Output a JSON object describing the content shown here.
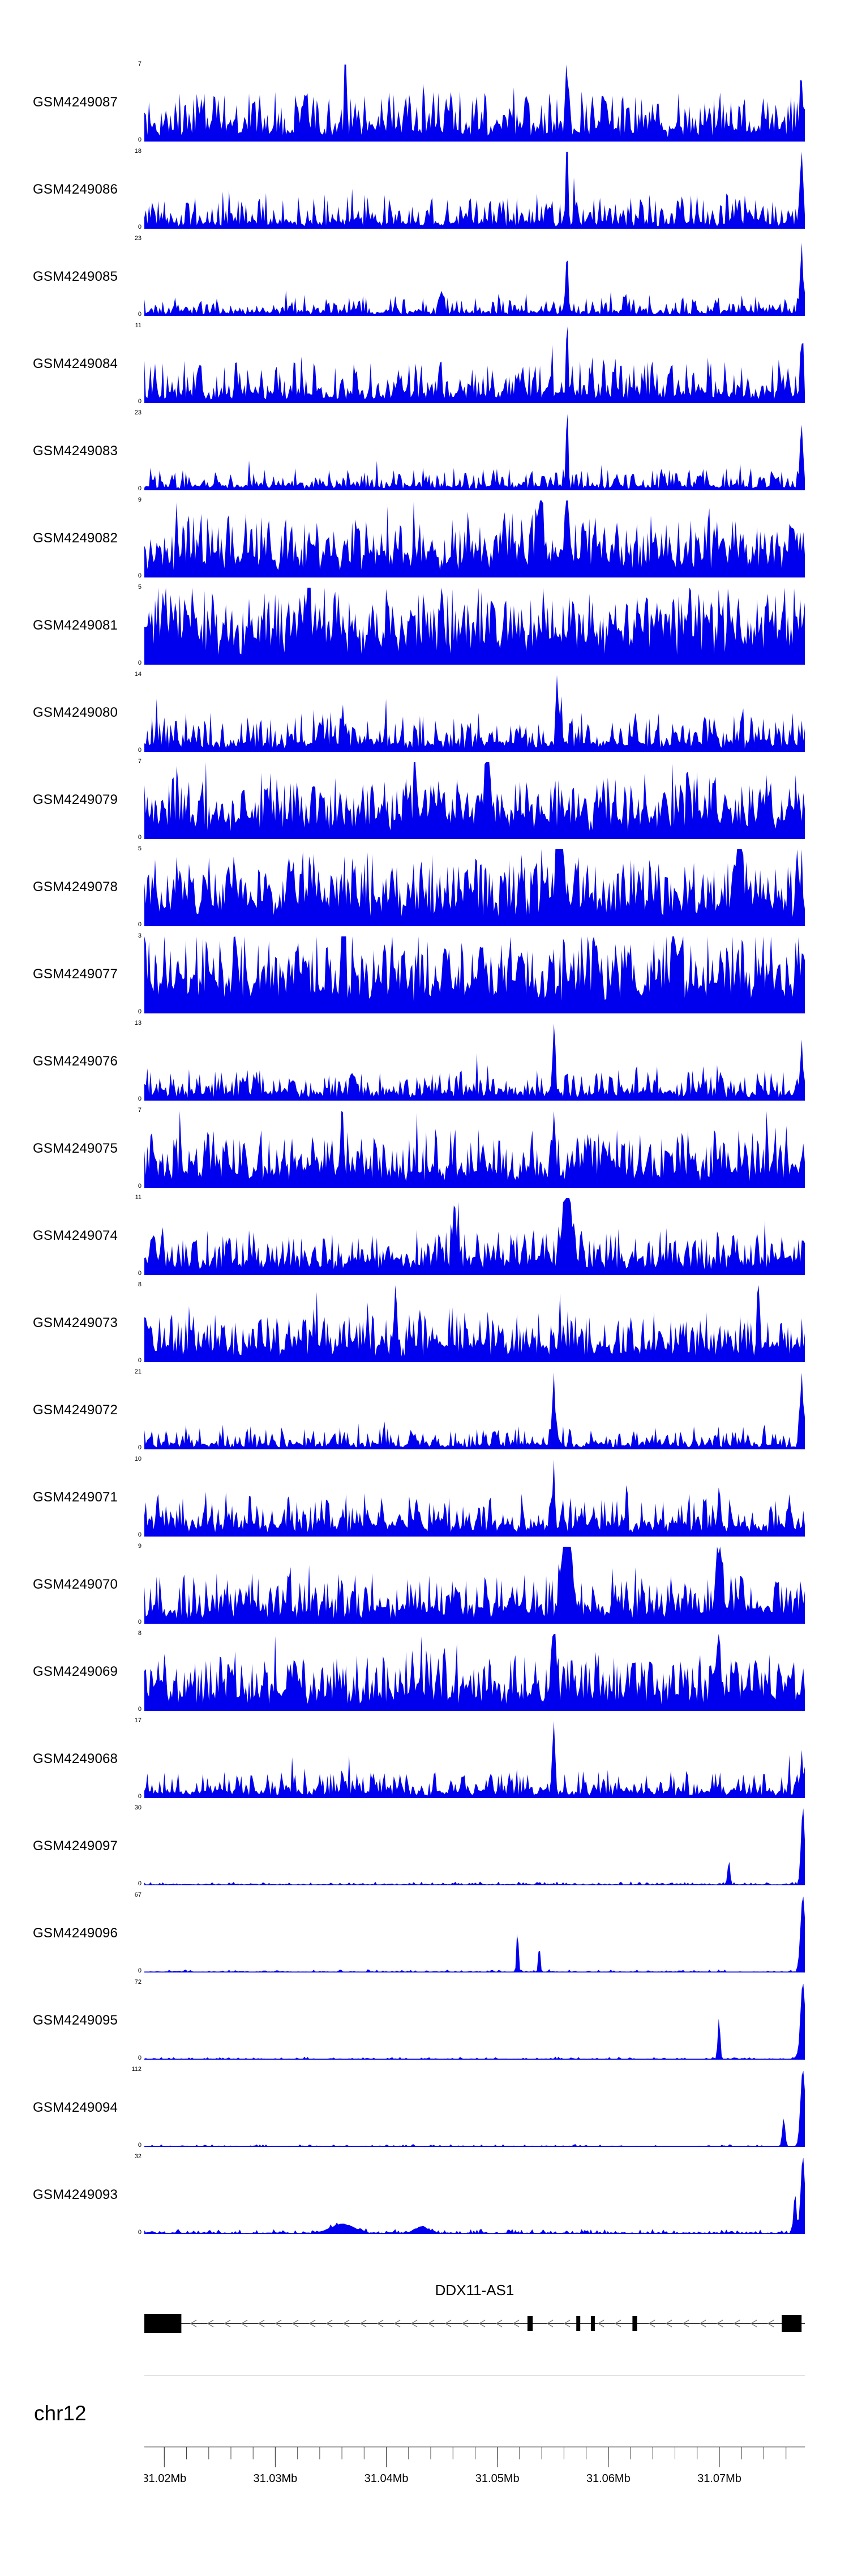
{
  "colors": {
    "signal": "#0000ee",
    "gene": "#000000",
    "arrow": "#7a7a7a",
    "axis_line": "#444444",
    "separator": "#aaaaaa"
  },
  "region": {
    "chrom_label": "chr12",
    "start_mb": 31.0182,
    "end_mb": 31.0777,
    "minor_tick_step_mb": 0.002,
    "ticks": [
      {
        "label": "31.02Mb",
        "mb": 31.02
      },
      {
        "label": "31.03Mb",
        "mb": 31.03
      },
      {
        "label": "31.04Mb",
        "mb": 31.04
      },
      {
        "label": "31.05Mb",
        "mb": 31.05
      },
      {
        "label": "31.06Mb",
        "mb": 31.06
      },
      {
        "label": "31.07Mb",
        "mb": 31.07
      }
    ]
  },
  "gene": {
    "name": "DDX11-AS1",
    "strand": "minus",
    "exons": [
      {
        "f": 0.0,
        "w": 0.056,
        "h": 34
      },
      {
        "f": 0.58,
        "w": 0.008,
        "h": 26
      },
      {
        "f": 0.654,
        "w": 0.006,
        "h": 26
      },
      {
        "f": 0.676,
        "w": 0.006,
        "h": 26
      },
      {
        "f": 0.739,
        "w": 0.007,
        "h": 26
      },
      {
        "f": 0.965,
        "w": 0.03,
        "h": 30
      }
    ]
  },
  "chart_data": {
    "type": "area",
    "x_axis": {
      "label": "chr12",
      "unit": "Mb",
      "range": [
        31.0182,
        31.0777
      ],
      "tick_labels": [
        "31.02Mb",
        "31.03Mb",
        "31.04Mb",
        "31.05Mb",
        "31.06Mb",
        "31.07Mb"
      ]
    },
    "ymin_label": "0",
    "tracks": [
      {
        "label": "GSM4249087",
        "ymax": "7",
        "seed": 101,
        "base": 0.16,
        "noise": 0.55,
        "pow": 2.2,
        "tall_prob": 0.05,
        "tall": 0.5,
        "floor": 0.006,
        "spikes": [
          {
            "p": 0.305,
            "h": 0.9,
            "w": 0.0025
          },
          {
            "p": 0.64,
            "h": 0.75,
            "w": 0.0025
          },
          {
            "p": 0.995,
            "h": 0.5,
            "w": 0.003
          }
        ]
      },
      {
        "label": "GSM4249086",
        "ymax": "18",
        "seed": 102,
        "base": 0.09,
        "noise": 0.38,
        "pow": 2.8,
        "tall_prob": 0.03,
        "tall": 0.4,
        "floor": 0.006,
        "spikes": [
          {
            "p": 0.64,
            "h": 1,
            "w": 0.0022
          },
          {
            "p": 0.995,
            "h": 0.85,
            "w": 0.0035
          }
        ]
      },
      {
        "label": "GSM4249085",
        "ymax": "23",
        "seed": 103,
        "base": 0.055,
        "noise": 0.22,
        "pow": 3.2,
        "tall_prob": 0.02,
        "tall": 0.3,
        "floor": 0.006,
        "spikes": [
          {
            "p": 0.45,
            "h": 0.3,
            "w": 0.004
          },
          {
            "p": 0.64,
            "h": 0.8,
            "w": 0.0025
          },
          {
            "p": 0.995,
            "h": 0.75,
            "w": 0.0035
          }
        ]
      },
      {
        "label": "GSM4249084",
        "ymax": "11",
        "seed": 104,
        "base": 0.13,
        "noise": 0.45,
        "pow": 2.4,
        "tall_prob": 0.04,
        "tall": 0.4,
        "floor": 0.006,
        "spikes": [
          {
            "p": 0.64,
            "h": 1,
            "w": 0.0022
          },
          {
            "p": 0.995,
            "h": 0.7,
            "w": 0.003
          }
        ]
      },
      {
        "label": "GSM4249083",
        "ymax": "23",
        "seed": 105,
        "base": 0.06,
        "noise": 0.24,
        "pow": 3.0,
        "tall_prob": 0.02,
        "tall": 0.35,
        "floor": 0.006,
        "spikes": [
          {
            "p": 0.64,
            "h": 1,
            "w": 0.0022
          },
          {
            "p": 0.995,
            "h": 0.8,
            "w": 0.0035
          }
        ]
      },
      {
        "label": "GSM4249082",
        "ymax": "9",
        "seed": 106,
        "base": 0.26,
        "noise": 0.6,
        "pow": 1.8,
        "tall_prob": 0.08,
        "tall": 0.45,
        "floor": 0.006,
        "spikes": [
          {
            "p": 0.6,
            "h": 1,
            "w": 0.003
          },
          {
            "p": 0.64,
            "h": 0.9,
            "w": 0.003
          }
        ]
      },
      {
        "label": "GSM4249081",
        "ymax": "5",
        "seed": 107,
        "base": 0.34,
        "noise": 0.68,
        "pow": 1.6,
        "tall_prob": 0.1,
        "tall": 0.4,
        "floor": 0.006,
        "spikes": [
          {
            "p": 0.25,
            "h": 1,
            "w": 0.003
          },
          {
            "p": 0.45,
            "h": 0.95,
            "w": 0.003
          }
        ]
      },
      {
        "label": "GSM4249080",
        "ymax": "14",
        "seed": 108,
        "base": 0.12,
        "noise": 0.4,
        "pow": 2.6,
        "tall_prob": 0.03,
        "tall": 0.4,
        "floor": 0.006,
        "spikes": [
          {
            "p": 0.3,
            "h": 0.5,
            "w": 0.003
          },
          {
            "p": 0.625,
            "h": 1,
            "w": 0.0022
          }
        ]
      },
      {
        "label": "GSM4249079",
        "ymax": "7",
        "seed": 109,
        "base": 0.27,
        "noise": 0.6,
        "pow": 1.8,
        "tall_prob": 0.08,
        "tall": 0.45,
        "floor": 0.006,
        "spikes": [
          {
            "p": 0.41,
            "h": 0.95,
            "w": 0.003
          },
          {
            "p": 0.52,
            "h": 0.9,
            "w": 0.005
          }
        ]
      },
      {
        "label": "GSM4249078",
        "ymax": "5",
        "seed": 110,
        "base": 0.32,
        "noise": 0.65,
        "pow": 1.7,
        "tall_prob": 0.09,
        "tall": 0.4,
        "floor": 0.006,
        "spikes": [
          {
            "p": 0.63,
            "h": 1,
            "w": 0.007
          },
          {
            "p": 0.9,
            "h": 0.9,
            "w": 0.005
          }
        ]
      },
      {
        "label": "GSM4249077",
        "ymax": "3",
        "seed": 111,
        "base": 0.4,
        "noise": 0.7,
        "pow": 1.5,
        "tall_prob": 0.12,
        "tall": 0.4,
        "floor": 0.006,
        "spikes": [
          {
            "p": 0.3,
            "h": 1,
            "w": 0.003
          },
          {
            "p": 0.8,
            "h": 1,
            "w": 0.003
          }
        ]
      },
      {
        "label": "GSM4249076",
        "ymax": "13",
        "seed": 112,
        "base": 0.11,
        "noise": 0.36,
        "pow": 2.6,
        "tall_prob": 0.03,
        "tall": 0.35,
        "floor": 0.006,
        "spikes": [
          {
            "p": 0.62,
            "h": 1,
            "w": 0.0022
          },
          {
            "p": 0.995,
            "h": 0.6,
            "w": 0.003
          }
        ]
      },
      {
        "label": "GSM4249075",
        "ymax": "7",
        "seed": 113,
        "base": 0.23,
        "noise": 0.55,
        "pow": 2.0,
        "tall_prob": 0.06,
        "tall": 0.45,
        "floor": 0.006,
        "spikes": [
          {
            "p": 0.3,
            "h": 0.9,
            "w": 0.0025
          },
          {
            "p": 0.62,
            "h": 0.8,
            "w": 0.0025
          }
        ]
      },
      {
        "label": "GSM4249074",
        "ymax": "11",
        "seed": 114,
        "base": 0.18,
        "noise": 0.45,
        "pow": 2.2,
        "tall_prob": 0.05,
        "tall": 0.4,
        "floor": 0.006,
        "spikes": [
          {
            "p": 0.47,
            "h": 0.6,
            "w": 0.004
          },
          {
            "p": 0.64,
            "h": 1,
            "w": 0.009
          }
        ]
      },
      {
        "label": "GSM4249073",
        "ymax": "8",
        "seed": 115,
        "base": 0.2,
        "noise": 0.5,
        "pow": 2.1,
        "tall_prob": 0.06,
        "tall": 0.4,
        "floor": 0.006,
        "spikes": [
          {
            "p": 0.38,
            "h": 0.9,
            "w": 0.0025
          },
          {
            "p": 0.93,
            "h": 0.85,
            "w": 0.0025
          }
        ]
      },
      {
        "label": "GSM4249072",
        "ymax": "21",
        "seed": 116,
        "base": 0.07,
        "noise": 0.26,
        "pow": 3.0,
        "tall_prob": 0.02,
        "tall": 0.3,
        "floor": 0.006,
        "spikes": [
          {
            "p": 0.62,
            "h": 1,
            "w": 0.0025
          },
          {
            "p": 0.995,
            "h": 0.8,
            "w": 0.0035
          }
        ]
      },
      {
        "label": "GSM4249071",
        "ymax": "10",
        "seed": 117,
        "base": 0.15,
        "noise": 0.42,
        "pow": 2.4,
        "tall_prob": 0.04,
        "tall": 0.4,
        "floor": 0.006,
        "spikes": [
          {
            "p": 0.62,
            "h": 1,
            "w": 0.0022
          },
          {
            "p": 0.87,
            "h": 0.55,
            "w": 0.003
          }
        ]
      },
      {
        "label": "GSM4249070",
        "ymax": "9",
        "seed": 118,
        "base": 0.19,
        "noise": 0.48,
        "pow": 2.1,
        "tall_prob": 0.05,
        "tall": 0.4,
        "floor": 0.006,
        "spikes": [
          {
            "p": 0.64,
            "h": 1,
            "w": 0.01
          },
          {
            "p": 0.87,
            "h": 0.75,
            "w": 0.006
          }
        ]
      },
      {
        "label": "GSM4249069",
        "ymax": "8",
        "seed": 119,
        "base": 0.23,
        "noise": 0.55,
        "pow": 2.0,
        "tall_prob": 0.06,
        "tall": 0.45,
        "floor": 0.006,
        "spikes": [
          {
            "p": 0.62,
            "h": 1,
            "w": 0.0035
          },
          {
            "p": 0.87,
            "h": 0.9,
            "w": 0.0035
          }
        ]
      },
      {
        "label": "GSM4249068",
        "ymax": "17",
        "seed": 120,
        "base": 0.09,
        "noise": 0.3,
        "pow": 2.8,
        "tall_prob": 0.03,
        "tall": 0.35,
        "floor": 0.006,
        "spikes": [
          {
            "p": 0.62,
            "h": 1,
            "w": 0.0025
          },
          {
            "p": 0.995,
            "h": 0.4,
            "w": 0.003
          }
        ]
      },
      {
        "label": "GSM4249097",
        "ymax": "30",
        "seed": 121,
        "base": 0.015,
        "noise": 0.035,
        "pow": 4.0,
        "tall_prob": 0,
        "tall": 0,
        "floor": 0.012,
        "spikes": [
          {
            "p": 0.885,
            "h": 0.32,
            "w": 0.0025
          },
          {
            "p": 0.997,
            "h": 1,
            "w": 0.004
          }
        ]
      },
      {
        "label": "GSM4249096",
        "ymax": "67",
        "seed": 122,
        "base": 0.012,
        "noise": 0.03,
        "pow": 4.5,
        "tall_prob": 0,
        "tall": 0,
        "floor": 0.012,
        "spikes": [
          {
            "p": 0.565,
            "h": 0.58,
            "w": 0.002
          },
          {
            "p": 0.598,
            "h": 0.36,
            "w": 0.002
          },
          {
            "p": 0.997,
            "h": 1,
            "w": 0.005
          }
        ]
      },
      {
        "label": "GSM4249095",
        "ymax": "72",
        "seed": 123,
        "base": 0.012,
        "noise": 0.028,
        "pow": 4.5,
        "tall_prob": 0,
        "tall": 0,
        "floor": 0.012,
        "spikes": [
          {
            "p": 0.87,
            "h": 0.55,
            "w": 0.0025
          },
          {
            "p": 0.997,
            "h": 1,
            "w": 0.005
          }
        ]
      },
      {
        "label": "GSM4249094",
        "ymax": "112",
        "seed": 124,
        "base": 0.01,
        "noise": 0.024,
        "pow": 5.0,
        "tall_prob": 0,
        "tall": 0,
        "floor": 0.01,
        "spikes": [
          {
            "p": 0.968,
            "h": 0.38,
            "w": 0.003
          },
          {
            "p": 0.997,
            "h": 1,
            "w": 0.005
          }
        ]
      },
      {
        "label": "GSM4249093",
        "ymax": "32",
        "seed": 125,
        "base": 0.018,
        "noise": 0.05,
        "pow": 4.0,
        "tall_prob": 0,
        "tall": 0,
        "floor": 0.012,
        "spikes": [
          {
            "p": 0.3,
            "h": 0.12,
            "w": 0.025
          },
          {
            "p": 0.42,
            "h": 0.08,
            "w": 0.015
          },
          {
            "p": 0.985,
            "h": 0.5,
            "w": 0.003
          },
          {
            "p": 0.997,
            "h": 1,
            "w": 0.0045
          }
        ]
      }
    ]
  }
}
